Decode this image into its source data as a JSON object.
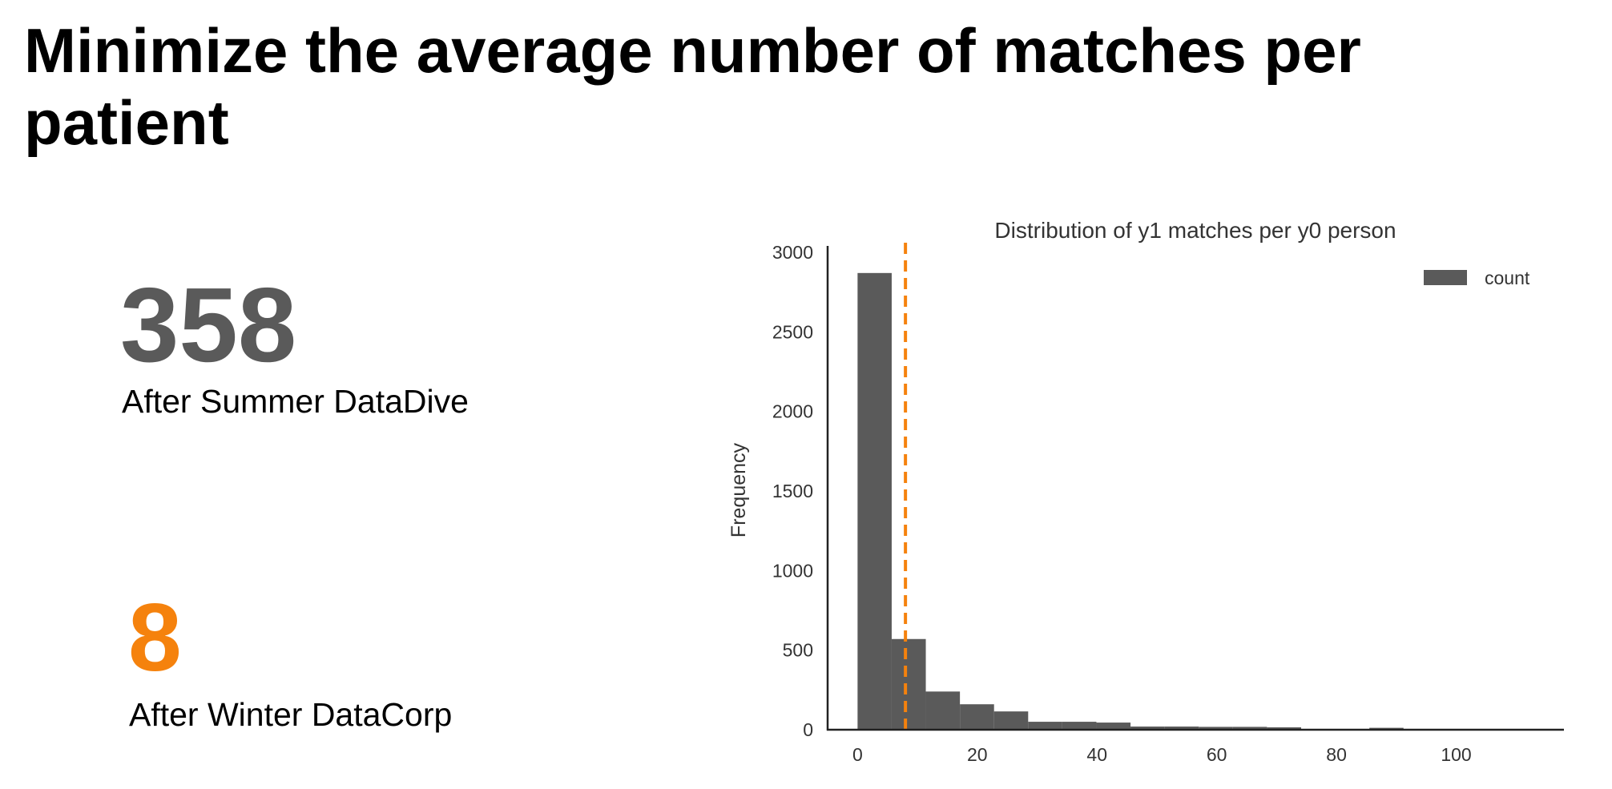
{
  "slide": {
    "title": "Minimize the average number of matches per patient"
  },
  "stats": [
    {
      "value": "358",
      "label": "After Summer DataDive",
      "color": "#5a5a5a"
    },
    {
      "value": "8",
      "label": "After Winter DataCorp",
      "color": "#f5820d"
    }
  ],
  "chart_data": {
    "type": "bar",
    "title": "Distribution of y1 matches per y0 person",
    "xlabel": "",
    "ylabel": "Frequency",
    "xlim": [
      -5,
      118
    ],
    "ylim": [
      0,
      3000
    ],
    "x_ticks": [
      0,
      20,
      40,
      60,
      80,
      100
    ],
    "y_ticks": [
      0,
      500,
      1000,
      1500,
      2000,
      2500,
      3000
    ],
    "grid": false,
    "legend_position": "top-right",
    "series": [
      {
        "name": "count",
        "color": "#5a5a5a",
        "bins": [
          {
            "x0": 0,
            "x1": 5.7,
            "count": 2870
          },
          {
            "x0": 5.7,
            "x1": 11.4,
            "count": 570
          },
          {
            "x0": 11.4,
            "x1": 17.1,
            "count": 240
          },
          {
            "x0": 17.1,
            "x1": 22.8,
            "count": 160
          },
          {
            "x0": 22.8,
            "x1": 28.5,
            "count": 115
          },
          {
            "x0": 28.5,
            "x1": 34.2,
            "count": 50
          },
          {
            "x0": 34.2,
            "x1": 39.9,
            "count": 50
          },
          {
            "x0": 39.9,
            "x1": 45.6,
            "count": 45
          },
          {
            "x0": 45.6,
            "x1": 51.3,
            "count": 20
          },
          {
            "x0": 51.3,
            "x1": 57.0,
            "count": 20
          },
          {
            "x0": 57.0,
            "x1": 62.7,
            "count": 18
          },
          {
            "x0": 62.7,
            "x1": 68.4,
            "count": 18
          },
          {
            "x0": 68.4,
            "x1": 74.1,
            "count": 15
          },
          {
            "x0": 74.1,
            "x1": 79.8,
            "count": 4
          },
          {
            "x0": 79.8,
            "x1": 85.5,
            "count": 4
          },
          {
            "x0": 85.5,
            "x1": 91.2,
            "count": 12
          },
          {
            "x0": 91.2,
            "x1": 96.9,
            "count": 2
          },
          {
            "x0": 96.9,
            "x1": 102.6,
            "count": 2
          },
          {
            "x0": 102.6,
            "x1": 108.3,
            "count": 2
          },
          {
            "x0": 108.3,
            "x1": 114.0,
            "count": 2
          }
        ]
      }
    ],
    "reference_line": {
      "x": 8,
      "color": "#f5820d",
      "style": "dashed"
    }
  }
}
